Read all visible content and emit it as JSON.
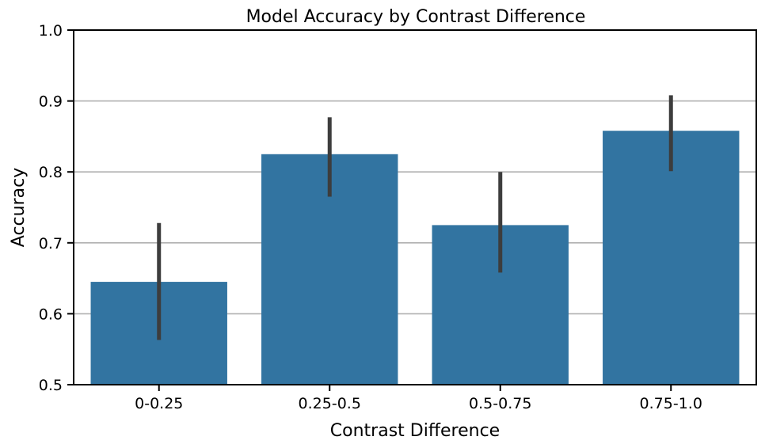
{
  "chart_data": {
    "type": "bar",
    "title": "Model Accuracy by Contrast Difference",
    "xlabel": "Contrast Difference",
    "ylabel": "Accuracy",
    "categories": [
      "0-0.25",
      "0.25-0.5",
      "0.5-0.75",
      "0.75-1.0"
    ],
    "values": [
      0.645,
      0.825,
      0.725,
      0.858
    ],
    "error_low": [
      0.563,
      0.765,
      0.658,
      0.801
    ],
    "error_high": [
      0.728,
      0.877,
      0.8,
      0.908
    ],
    "ylim": [
      0.5,
      1.0
    ],
    "yticks": [
      "0.5",
      "0.6",
      "0.7",
      "0.8",
      "0.9",
      "1.0"
    ],
    "ytick_values": [
      0.5,
      0.6,
      0.7,
      0.8,
      0.9,
      1.0
    ],
    "grid": "y-only",
    "legend": "none",
    "bar_color": "#3274a1",
    "error_color": "#3d3d3d",
    "grid_color": "#b0b0b0"
  }
}
